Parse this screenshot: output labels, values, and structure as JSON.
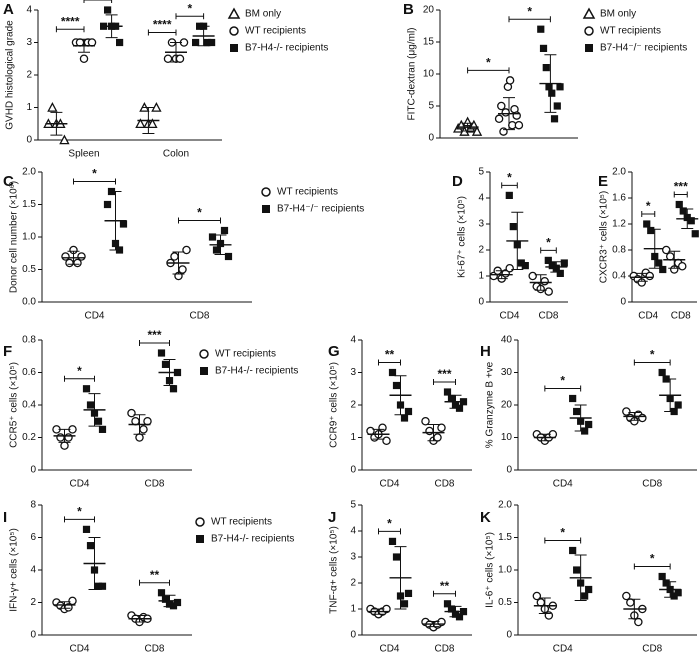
{
  "chart_data": [
    {
      "type": "dot",
      "panel": "A",
      "ylabel": "GVHD histological grade",
      "categories": [
        "Spleen",
        "Colon"
      ],
      "ylim": [
        0,
        4
      ],
      "yticks": [
        0,
        1,
        2,
        3,
        4
      ],
      "legend": true,
      "series": [
        {
          "name": "BM only",
          "marker": "triangle",
          "values": [
            [
              0.5,
              1.0,
              0.5,
              0.5,
              0.0
            ],
            [
              0.5,
              1.0,
              0.5,
              0.5,
              1.0
            ]
          ],
          "mean": [
            0.5,
            0.6
          ],
          "sd": [
            0.35,
            0.4
          ]
        },
        {
          "name": "WT recipients",
          "marker": "circle",
          "values": [
            [
              3.0,
              3.0,
              2.5,
              3.0,
              3.0
            ],
            [
              2.5,
              3.0,
              2.5,
              2.5,
              3.0
            ]
          ],
          "mean": [
            2.9,
            2.7
          ],
          "sd": [
            0.2,
            0.3
          ]
        },
        {
          "name": "B7-H4-/- recipients",
          "marker": "square",
          "values": [
            [
              3.5,
              4.0,
              3.5,
              3.5,
              3.0
            ],
            [
              3.0,
              3.5,
              3.5,
              3.0,
              3.0
            ]
          ],
          "mean": [
            3.5,
            3.2
          ],
          "sd": [
            0.35,
            0.3
          ]
        }
      ],
      "significance": [
        [
          "****",
          "*"
        ],
        [
          "****",
          "*"
        ]
      ]
    },
    {
      "type": "dot",
      "panel": "B",
      "ylabel": "FITC-dextran (μg/ml)",
      "categories": [
        null
      ],
      "ylim": [
        0,
        20
      ],
      "yticks": [
        0,
        5,
        10,
        15,
        20
      ],
      "legend": true,
      "series": [
        {
          "name": "BM only",
          "marker": "triangle",
          "values": [
            [
              1.5,
              2.0,
              1.0,
              2.5,
              1.5,
              2.0,
              1.0
            ]
          ],
          "mean": [
            1.7
          ],
          "sd": [
            0.6
          ]
        },
        {
          "name": "WT recipients",
          "marker": "circle",
          "values": [
            [
              3.0,
              5.0,
              1.0,
              4.0,
              8.0,
              9.0,
              2.0,
              4.5,
              3.5,
              2.0
            ]
          ],
          "mean": [
            3.8
          ],
          "sd": [
            2.5
          ]
        },
        {
          "name": "B7-H4⁻/⁻ recipients",
          "marker": "square",
          "values": [
            [
              17,
              14,
              11,
              8,
              7,
              3,
              5,
              8
            ]
          ],
          "mean": [
            8.5
          ],
          "sd": [
            4.5
          ]
        }
      ],
      "significance": [
        [
          "*",
          "*"
        ]
      ]
    },
    {
      "type": "dot",
      "panel": "C",
      "ylabel": "Donor cell number (×10⁶)",
      "categories": [
        "CD4",
        "CD8"
      ],
      "ylim": [
        0,
        2
      ],
      "yticks": [
        {
          "value": 0,
          "label": "0.0"
        },
        0.5,
        {
          "value": 1,
          "label": "1.0"
        },
        1.5,
        {
          "value": 2,
          "label": "2.0"
        }
      ],
      "legend": true,
      "series": [
        {
          "name": "WT recipients",
          "marker": "circle",
          "values": [
            [
              0.7,
              0.6,
              0.8,
              0.6,
              0.7
            ],
            [
              0.6,
              0.7,
              0.4,
              0.5,
              0.8
            ]
          ],
          "mean": [
            0.68,
            0.6
          ],
          "sd": [
            0.1,
            0.17
          ]
        },
        {
          "name": "B7-H4⁻/⁻ recipients",
          "marker": "square",
          "values": [
            [
              1.5,
              1.7,
              0.9,
              0.8,
              1.2
            ],
            [
              1.0,
              0.8,
              0.9,
              1.1,
              0.7
            ]
          ],
          "mean": [
            1.25,
            0.88
          ],
          "sd": [
            0.45,
            0.15
          ]
        }
      ],
      "significance": [
        [
          "*"
        ],
        [
          "*"
        ]
      ]
    },
    {
      "type": "dot",
      "panel": "D",
      "ylabel": "Ki-67⁺ cells (×10⁵)",
      "categories": [
        "CD4",
        "CD8"
      ],
      "ylim": [
        0,
        5
      ],
      "yticks": [
        0,
        1,
        2,
        3,
        4,
        5
      ],
      "legend": false,
      "series": [
        {
          "marker": "circle",
          "values": [
            [
              1.0,
              1.2,
              0.9,
              1.1,
              1.3
            ],
            [
              1.0,
              0.6,
              0.5,
              0.8,
              0.4
            ]
          ],
          "mean": [
            1.05,
            0.75
          ],
          "sd": [
            0.15,
            0.3
          ]
        },
        {
          "marker": "square",
          "values": [
            [
              4.1,
              2.9,
              2.2,
              1.5,
              1.4
            ],
            [
              1.6,
              1.4,
              1.3,
              1.1,
              1.5
            ]
          ],
          "mean": [
            2.35,
            1.35
          ],
          "sd": [
            1.1,
            0.2
          ]
        }
      ],
      "significance": [
        [
          "*"
        ],
        [
          "*"
        ]
      ]
    },
    {
      "type": "dot",
      "panel": "E",
      "ylabel": "CXCR3⁺ cells (×10⁵)",
      "categories": [
        "CD4",
        "CD8"
      ],
      "ylim": [
        0,
        2
      ],
      "yticks": [
        0,
        0.4,
        0.8,
        1.2,
        1.6,
        {
          "value": 2,
          "label": "2.0"
        }
      ],
      "legend": false,
      "series": [
        {
          "marker": "circle",
          "values": [
            [
              0.4,
              0.35,
              0.3,
              0.45,
              0.4
            ],
            [
              0.8,
              0.7,
              0.5,
              0.6,
              0.55
            ]
          ],
          "mean": [
            0.38,
            0.65
          ],
          "sd": [
            0.06,
            0.13
          ]
        },
        {
          "marker": "square",
          "values": [
            [
              1.2,
              1.1,
              0.7,
              0.6,
              0.5
            ],
            [
              1.5,
              1.4,
              1.3,
              1.25,
              1.05
            ]
          ],
          "mean": [
            0.82,
            1.28
          ],
          "sd": [
            0.3,
            0.15
          ]
        }
      ],
      "significance": [
        [
          "*"
        ],
        [
          "***"
        ]
      ]
    },
    {
      "type": "dot",
      "panel": "F",
      "ylabel": "CCR5⁺ cells (×10⁵)",
      "categories": [
        "CD4",
        "CD8"
      ],
      "ylim": [
        0,
        0.8
      ],
      "yticks": [
        0,
        0.2,
        0.4,
        0.6,
        0.8
      ],
      "legend": true,
      "series": [
        {
          "name": "WT recipients",
          "marker": "circle",
          "values": [
            [
              0.25,
              0.2,
              0.15,
              0.2,
              0.25
            ],
            [
              0.35,
              0.3,
              0.2,
              0.25,
              0.3
            ]
          ],
          "mean": [
            0.21,
            0.28
          ],
          "sd": [
            0.04,
            0.06
          ]
        },
        {
          "name": "B7-H4-/- recipients",
          "marker": "square",
          "values": [
            [
              0.5,
              0.4,
              0.35,
              0.3,
              0.25
            ],
            [
              0.72,
              0.65,
              0.55,
              0.5,
              0.6
            ]
          ],
          "mean": [
            0.37,
            0.6
          ],
          "sd": [
            0.1,
            0.08
          ]
        }
      ],
      "significance": [
        [
          "*"
        ],
        [
          "***"
        ]
      ]
    },
    {
      "type": "dot",
      "panel": "G",
      "ylabel": "CCR9⁺ cells (×10⁵)",
      "categories": [
        "CD4",
        "CD8"
      ],
      "ylim": [
        0,
        4
      ],
      "yticks": [
        0,
        1,
        2,
        3,
        4
      ],
      "legend": false,
      "series": [
        {
          "marker": "circle",
          "values": [
            [
              1.2,
              1.0,
              1.1,
              1.3,
              0.9
            ],
            [
              1.5,
              1.2,
              0.9,
              1.0,
              1.3
            ]
          ],
          "mean": [
            1.1,
            1.15
          ],
          "sd": [
            0.15,
            0.25
          ]
        },
        {
          "marker": "square",
          "values": [
            [
              3.0,
              2.6,
              2.0,
              1.6,
              1.8
            ],
            [
              2.4,
              2.2,
              2.0,
              1.9,
              2.1
            ]
          ],
          "mean": [
            2.3,
            2.1
          ],
          "sd": [
            0.6,
            0.2
          ]
        }
      ],
      "significance": [
        [
          "**"
        ],
        [
          "***"
        ]
      ]
    },
    {
      "type": "dot",
      "panel": "H",
      "ylabel": "% Granzyme B +ve",
      "categories": [
        "CD4",
        "CD8"
      ],
      "ylim": [
        0,
        40
      ],
      "yticks": [
        0,
        10,
        20,
        30,
        40
      ],
      "legend": false,
      "series": [
        {
          "marker": "circle",
          "values": [
            [
              11,
              10,
              9,
              10,
              11
            ],
            [
              18,
              16,
              15,
              17,
              16
            ]
          ],
          "mean": [
            10,
            16.5
          ],
          "sd": [
            1,
            1.2
          ]
        },
        {
          "marker": "square",
          "values": [
            [
              22,
              18,
              15,
              12,
              14
            ],
            [
              30,
              28,
              22,
              18,
              20
            ]
          ],
          "mean": [
            16,
            23
          ],
          "sd": [
            4,
            5
          ]
        }
      ],
      "significance": [
        [
          "*"
        ],
        [
          "*"
        ]
      ]
    },
    {
      "type": "dot",
      "panel": "I",
      "ylabel": "IFN-γ+ cells (×10⁵)",
      "categories": [
        "CD4",
        "CD8"
      ],
      "ylim": [
        0,
        8
      ],
      "yticks": [
        0,
        2,
        4,
        6,
        8
      ],
      "legend": true,
      "series": [
        {
          "name": "WT recipients",
          "marker": "circle",
          "values": [
            [
              2.0,
              1.8,
              1.6,
              1.7,
              2.1
            ],
            [
              1.2,
              1.0,
              0.8,
              1.1,
              1.0
            ]
          ],
          "mean": [
            1.85,
            1.0
          ],
          "sd": [
            0.2,
            0.2
          ]
        },
        {
          "name": "B7-H4-/- recipients",
          "marker": "square",
          "values": [
            [
              6.5,
              5.5,
              4.0,
              3.0,
              3.0
            ],
            [
              2.6,
              2.2,
              1.9,
              1.8,
              2.0
            ]
          ],
          "mean": [
            4.4,
            2.1
          ],
          "sd": [
            1.6,
            0.35
          ]
        }
      ],
      "significance": [
        [
          "*"
        ],
        [
          "**"
        ]
      ]
    },
    {
      "type": "dot",
      "panel": "J",
      "ylabel": "TNF-α+ cells (×10⁵)",
      "categories": [
        "CD4",
        "CD8"
      ],
      "ylim": [
        0,
        5
      ],
      "yticks": [
        0,
        1,
        2,
        3,
        4,
        5
      ],
      "legend": false,
      "series": [
        {
          "marker": "circle",
          "values": [
            [
              1.0,
              0.9,
              0.8,
              0.9,
              1.0
            ],
            [
              0.5,
              0.4,
              0.3,
              0.4,
              0.5
            ]
          ],
          "mean": [
            0.9,
            0.42
          ],
          "sd": [
            0.1,
            0.1
          ]
        },
        {
          "marker": "square",
          "values": [
            [
              3.6,
              3.0,
              1.5,
              1.2,
              1.6
            ],
            [
              1.2,
              1.0,
              0.8,
              0.7,
              0.9
            ]
          ],
          "mean": [
            2.2,
            0.9
          ],
          "sd": [
            1.2,
            0.2
          ]
        }
      ],
      "significance": [
        [
          "*"
        ],
        [
          "**"
        ]
      ]
    },
    {
      "type": "dot",
      "panel": "K",
      "ylabel": "IL-6⁺ cells (×10⁵)",
      "categories": [
        "CD4",
        "CD8"
      ],
      "ylim": [
        0,
        2
      ],
      "yticks": [
        0,
        0.5,
        {
          "value": 1,
          "label": "1.0"
        },
        1.5,
        {
          "value": 2,
          "label": "2.0"
        }
      ],
      "legend": false,
      "series": [
        {
          "marker": "circle",
          "values": [
            [
              0.6,
              0.5,
              0.4,
              0.3,
              0.45
            ],
            [
              0.6,
              0.5,
              0.3,
              0.2,
              0.4
            ]
          ],
          "mean": [
            0.45,
            0.4
          ],
          "sd": [
            0.12,
            0.15
          ]
        },
        {
          "marker": "square",
          "values": [
            [
              1.3,
              1.0,
              0.8,
              0.6,
              0.7
            ],
            [
              0.9,
              0.8,
              0.7,
              0.6,
              0.65
            ]
          ],
          "mean": [
            0.88,
            0.7
          ],
          "sd": [
            0.35,
            0.12
          ]
        }
      ],
      "significance": [
        [
          "*"
        ],
        [
          "*"
        ]
      ]
    }
  ]
}
